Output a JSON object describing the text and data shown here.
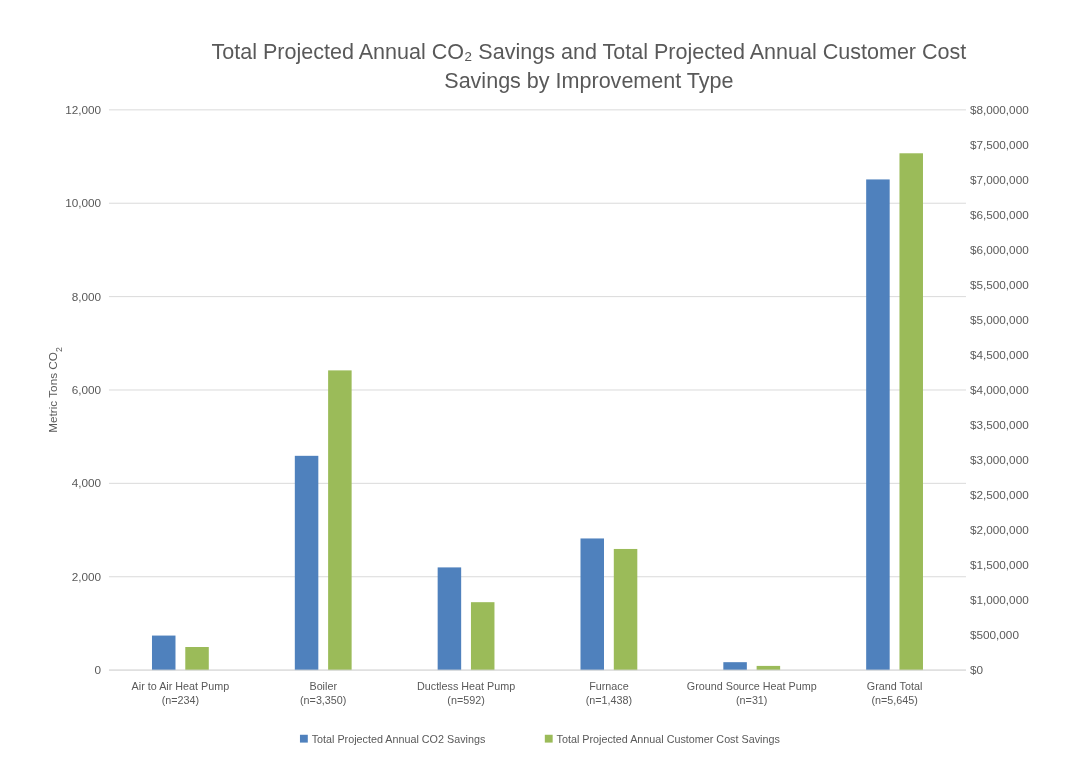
{
  "chart_data": {
    "type": "bar",
    "title": "Total Projected Annual CO₂ Savings and Total Projected Annual Customer Cost Savings by Improvement Type",
    "ylabel": "Metric Tons CO$_{2}$",
    "categories": [
      "Air to Air Heat Pump\n(n=234)",
      "Boiler\n(n=3,350)",
      "Ductless Heat Pump\n(n=592)",
      "Furnace\n(n=1,438)",
      "Ground Source Heat Pump\n(n=31)",
      "Grand Total\n(n=5,645)"
    ],
    "series": [
      {
        "name": "Total Projected Annual CO2 Savings",
        "color": "#4f81bd",
        "values": [
          740,
          4590,
          2200,
          2820,
          170,
          10510
        ]
      },
      {
        "name": "Total Projected Annual Customer Cost Savings",
        "color": "#9bbb59",
        "axis": "y2",
        "values": [
          330000,
          4280000,
          970000,
          1730000,
          60000,
          7380000
        ]
      }
    ],
    "ylim": [
      0,
      12000
    ],
    "yticks": [
      {
        "value": 0,
        "label": "0"
      },
      {
        "value": 2000,
        "label": "2,000"
      },
      {
        "value": 4000,
        "label": "4,000"
      },
      {
        "value": 6000,
        "label": "6,000"
      },
      {
        "value": 8000,
        "label": "8,000"
      },
      {
        "value": 10000,
        "label": "10,000"
      },
      {
        "value": 12000,
        "label": "12,000"
      }
    ],
    "y2lim": [
      0,
      8000000
    ],
    "y2ticks": [
      {
        "value": 0,
        "label": "$0"
      },
      {
        "value": 500000,
        "label": "$500,000"
      },
      {
        "value": 1000000,
        "label": "$1,000,000"
      },
      {
        "value": 1500000,
        "label": "$1,500,000"
      },
      {
        "value": 2000000,
        "label": "$2,000,000"
      },
      {
        "value": 2500000,
        "label": "$2,500,000"
      },
      {
        "value": 3000000,
        "label": "$3,000,000"
      },
      {
        "value": 3500000,
        "label": "$3,500,000"
      },
      {
        "value": 4000000,
        "label": "$4,000,000"
      },
      {
        "value": 4500000,
        "label": "$4,500,000"
      },
      {
        "value": 5000000,
        "label": "$5,000,000"
      },
      {
        "value": 5500000,
        "label": "$5,500,000"
      },
      {
        "value": 6000000,
        "label": "$6,000,000"
      },
      {
        "value": 6500000,
        "label": "$6,500,000"
      },
      {
        "value": 7000000,
        "label": "$7,000,000"
      },
      {
        "value": 7500000,
        "label": "$7,500,000"
      },
      {
        "value": 8000000,
        "label": "$8,000,000"
      }
    ],
    "grid": "y",
    "legend": "bottom"
  }
}
